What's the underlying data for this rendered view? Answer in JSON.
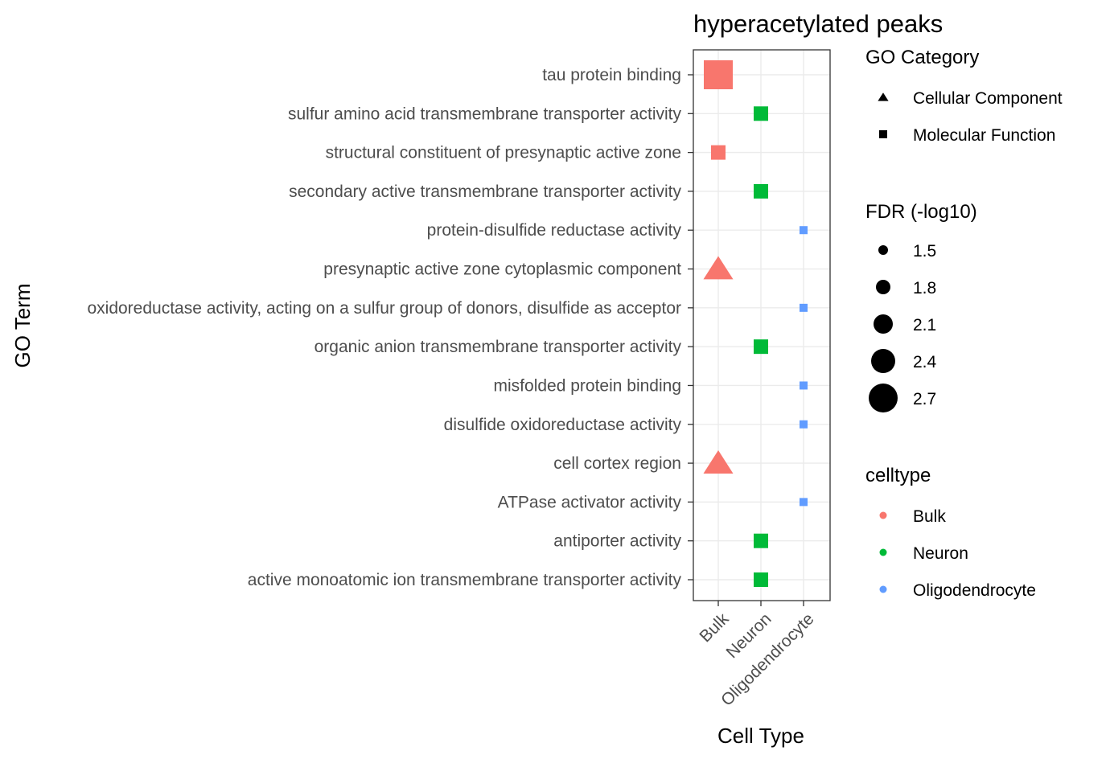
{
  "chart_data": {
    "type": "scatter",
    "title": "hyperacetylated peaks",
    "xlabel": "Cell Type",
    "ylabel": "GO Term",
    "x_categories": [
      "Bulk",
      "Neuron",
      "Oligodendrocyte"
    ],
    "y_categories": [
      "tau protein binding",
      "sulfur amino acid transmembrane transporter activity",
      "structural constituent of presynaptic active zone",
      "secondary active transmembrane transporter activity",
      "protein-disulfide reductase activity",
      "presynaptic active zone cytoplasmic component",
      "oxidoreductase activity, acting on a sulfur group of donors, disulfide as acceptor",
      "organic anion transmembrane transporter activity",
      "misfolded protein binding",
      "disulfide oxidoreductase activity",
      "cell cortex region",
      "ATPase activator activity",
      "antiporter activity",
      "active monoatomic ion transmembrane transporter activity"
    ],
    "points": [
      {
        "term": "tau protein binding",
        "celltype": "Bulk",
        "category": "Molecular Function",
        "fdr": 2.7
      },
      {
        "term": "sulfur amino acid transmembrane transporter activity",
        "celltype": "Neuron",
        "category": "Molecular Function",
        "fdr": 1.8
      },
      {
        "term": "structural constituent of presynaptic active zone",
        "celltype": "Bulk",
        "category": "Molecular Function",
        "fdr": 1.8
      },
      {
        "term": "secondary active transmembrane transporter activity",
        "celltype": "Neuron",
        "category": "Molecular Function",
        "fdr": 1.8
      },
      {
        "term": "protein-disulfide reductase activity",
        "celltype": "Oligodendrocyte",
        "category": "Molecular Function",
        "fdr": 1.4
      },
      {
        "term": "presynaptic active zone cytoplasmic component",
        "celltype": "Bulk",
        "category": "Cellular Component",
        "fdr": 2.3
      },
      {
        "term": "oxidoreductase activity, acting on a sulfur group of donors, disulfide as acceptor",
        "celltype": "Oligodendrocyte",
        "category": "Molecular Function",
        "fdr": 1.4
      },
      {
        "term": "organic anion transmembrane transporter activity",
        "celltype": "Neuron",
        "category": "Molecular Function",
        "fdr": 1.8
      },
      {
        "term": "misfolded protein binding",
        "celltype": "Oligodendrocyte",
        "category": "Molecular Function",
        "fdr": 1.4
      },
      {
        "term": "disulfide oxidoreductase activity",
        "celltype": "Oligodendrocyte",
        "category": "Molecular Function",
        "fdr": 1.4
      },
      {
        "term": "cell cortex region",
        "celltype": "Bulk",
        "category": "Cellular Component",
        "fdr": 2.3
      },
      {
        "term": "ATPase activator activity",
        "celltype": "Oligodendrocyte",
        "category": "Molecular Function",
        "fdr": 1.4
      },
      {
        "term": "antiporter activity",
        "celltype": "Neuron",
        "category": "Molecular Function",
        "fdr": 1.8
      },
      {
        "term": "active monoatomic ion transmembrane transporter activity",
        "celltype": "Neuron",
        "category": "Molecular Function",
        "fdr": 1.8
      }
    ],
    "legends": {
      "shape": {
        "title": "GO Category",
        "items": [
          "Cellular Component",
          "Molecular Function"
        ]
      },
      "size": {
        "title": "FDR (-log10)",
        "items": [
          "1.5",
          "1.8",
          "2.1",
          "2.4",
          "2.7"
        ],
        "values": [
          1.5,
          1.8,
          2.1,
          2.4,
          2.7
        ]
      },
      "color": {
        "title": "celltype",
        "items": [
          "Bulk",
          "Neuron",
          "Oligodendrocyte"
        ]
      }
    },
    "colors": {
      "Bulk": "#F8766D",
      "Neuron": "#00BA38",
      "Oligodendrocyte": "#619CFF"
    },
    "grid": true,
    "legend_position": "right"
  }
}
